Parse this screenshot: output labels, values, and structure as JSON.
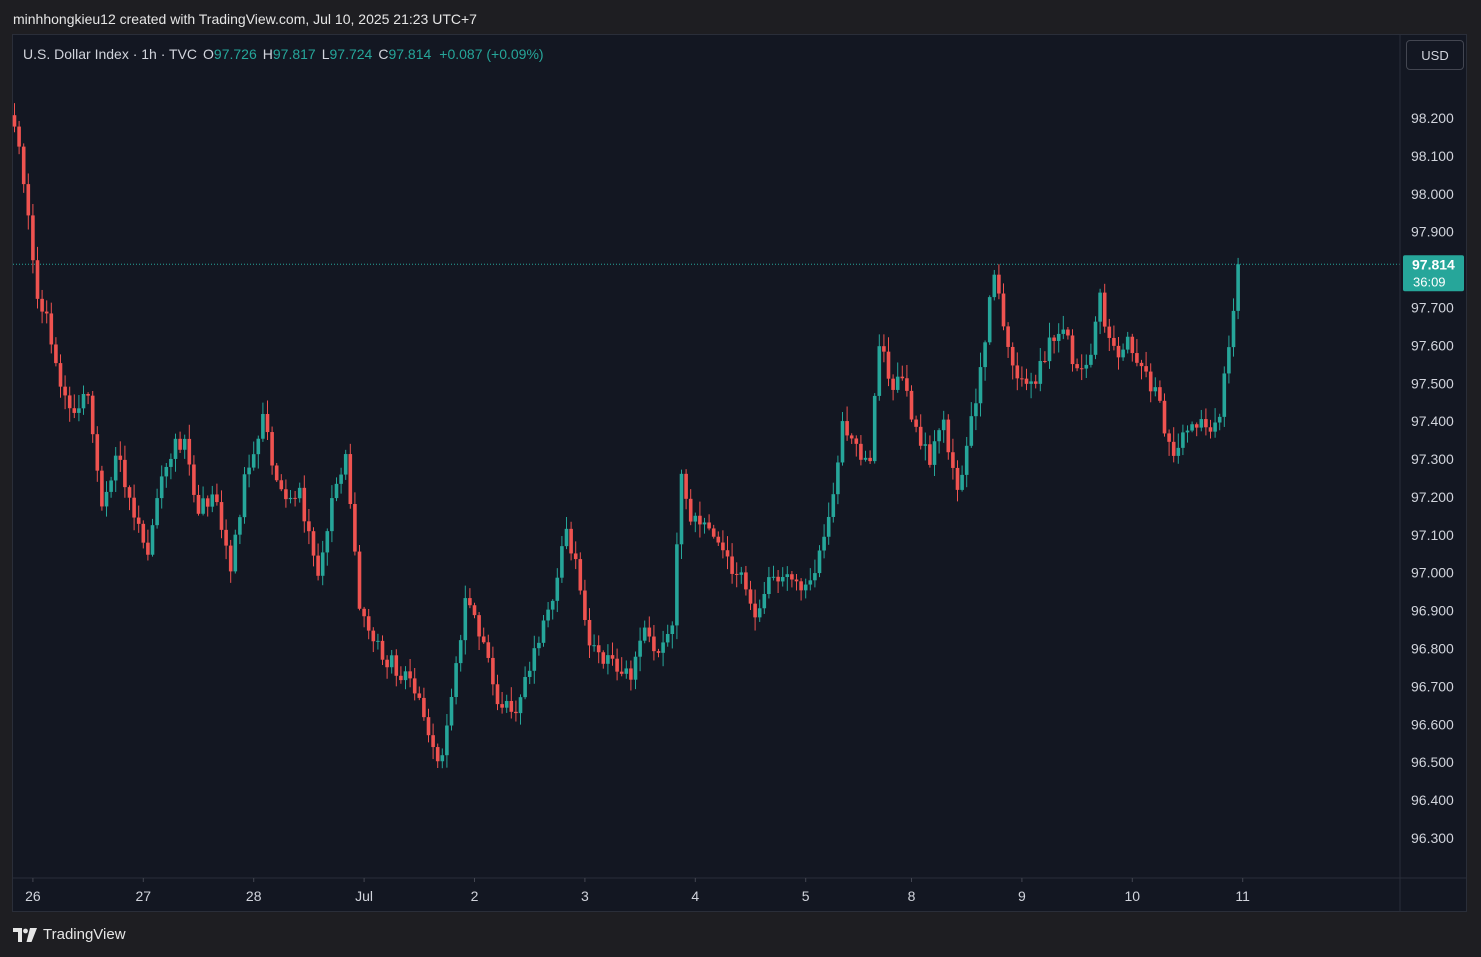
{
  "credit": "minhhongkieu12 created with TradingView.com, Jul 10, 2025 21:23 UTC+7",
  "legend": {
    "symbol": "U.S. Dollar Index · 1h · TVC",
    "open_label": "O",
    "open": "97.726",
    "high_label": "H",
    "high": "97.817",
    "low_label": "L",
    "low": "97.724",
    "close_label": "C",
    "close": "97.814",
    "change": "+0.087 (+0.09%)"
  },
  "currency_button": "USD",
  "price_badge": {
    "price": "97.814",
    "countdown": "36:09"
  },
  "brand": "TradingView",
  "colors": {
    "up": "#26a69a",
    "down": "#ef5350",
    "bg": "#131722",
    "axis_text": "#d1d4dc"
  },
  "chart_data": {
    "type": "candlestick",
    "title": "U.S. Dollar Index",
    "interval": "1h",
    "current_price": 97.814,
    "y_ticks": [
      98.2,
      98.1,
      98.0,
      97.9,
      97.8,
      97.7,
      97.6,
      97.5,
      97.4,
      97.3,
      97.2,
      97.1,
      97.0,
      96.9,
      96.8,
      96.7,
      96.6,
      96.5,
      96.4,
      96.3
    ],
    "y_tick_labels": [
      "98.200",
      "98.100",
      "98.000",
      "97.900",
      "97.800",
      "97.700",
      "97.600",
      "97.500",
      "97.400",
      "97.300",
      "97.200",
      "97.100",
      "97.000",
      "96.900",
      "96.800",
      "96.700",
      "96.600",
      "96.500",
      "96.400",
      "96.300"
    ],
    "x_ticks": [
      {
        "label": "26",
        "index": 4
      },
      {
        "label": "27",
        "index": 28
      },
      {
        "label": "28",
        "index": 52
      },
      {
        "label": "Jul",
        "index": 76
      },
      {
        "label": "2",
        "index": 100
      },
      {
        "label": "3",
        "index": 124
      },
      {
        "label": "4",
        "index": 148
      },
      {
        "label": "5",
        "index": 172
      },
      {
        "label": "8",
        "index": 195
      },
      {
        "label": "9",
        "index": 219
      },
      {
        "label": "10",
        "index": 243
      },
      {
        "label": "11",
        "index": 267
      }
    ],
    "ylim": [
      96.2,
      98.3
    ],
    "waypoints": [
      [
        0,
        98.18
      ],
      [
        3,
        97.95
      ],
      [
        5,
        97.72
      ],
      [
        7,
        97.68
      ],
      [
        10,
        97.5
      ],
      [
        13,
        97.42
      ],
      [
        16,
        97.48
      ],
      [
        19,
        97.15
      ],
      [
        22,
        97.32
      ],
      [
        25,
        97.2
      ],
      [
        29,
        97.05
      ],
      [
        33,
        97.3
      ],
      [
        37,
        97.36
      ],
      [
        40,
        97.15
      ],
      [
        43,
        97.22
      ],
      [
        47,
        97.0
      ],
      [
        50,
        97.25
      ],
      [
        54,
        97.4
      ],
      [
        58,
        97.2
      ],
      [
        62,
        97.2
      ],
      [
        66,
        97.0
      ],
      [
        69,
        97.2
      ],
      [
        72,
        97.3
      ],
      [
        75,
        96.92
      ],
      [
        79,
        96.8
      ],
      [
        83,
        96.75
      ],
      [
        86,
        96.7
      ],
      [
        89,
        96.62
      ],
      [
        92,
        96.48
      ],
      [
        95,
        96.65
      ],
      [
        98,
        96.92
      ],
      [
        102,
        96.82
      ],
      [
        105,
        96.65
      ],
      [
        109,
        96.63
      ],
      [
        113,
        96.8
      ],
      [
        117,
        96.95
      ],
      [
        120,
        97.1
      ],
      [
        122,
        97.05
      ],
      [
        125,
        96.82
      ],
      [
        128,
        96.78
      ],
      [
        131,
        96.76
      ],
      [
        134,
        96.72
      ],
      [
        137,
        96.85
      ],
      [
        140,
        96.8
      ],
      [
        143,
        96.88
      ],
      [
        145,
        97.27
      ],
      [
        147,
        97.15
      ],
      [
        150,
        97.15
      ],
      [
        153,
        97.1
      ],
      [
        156,
        97.0
      ],
      [
        159,
        96.97
      ],
      [
        161,
        96.88
      ],
      [
        164,
        96.98
      ],
      [
        167,
        96.98
      ],
      [
        170,
        96.98
      ],
      [
        173,
        96.97
      ],
      [
        176,
        97.1
      ],
      [
        178,
        97.2
      ],
      [
        180,
        97.4
      ],
      [
        183,
        97.33
      ],
      [
        186,
        97.28
      ],
      [
        188,
        97.62
      ],
      [
        190,
        97.5
      ],
      [
        193,
        97.52
      ],
      [
        196,
        97.38
      ],
      [
        199,
        97.3
      ],
      [
        202,
        97.38
      ],
      [
        205,
        97.2
      ],
      [
        208,
        97.4
      ],
      [
        210,
        97.52
      ],
      [
        213,
        97.8
      ],
      [
        216,
        97.58
      ],
      [
        219,
        97.5
      ],
      [
        222,
        97.52
      ],
      [
        225,
        97.6
      ],
      [
        228,
        97.65
      ],
      [
        231,
        97.52
      ],
      [
        234,
        97.58
      ],
      [
        236,
        97.72
      ],
      [
        239,
        97.58
      ],
      [
        242,
        97.6
      ],
      [
        245,
        97.55
      ],
      [
        248,
        97.48
      ],
      [
        251,
        97.34
      ],
      [
        253,
        97.32
      ],
      [
        256,
        97.4
      ],
      [
        259,
        97.38
      ],
      [
        262,
        97.42
      ],
      [
        263,
        97.55
      ],
      [
        265,
        97.68
      ],
      [
        266,
        97.814
      ]
    ]
  }
}
